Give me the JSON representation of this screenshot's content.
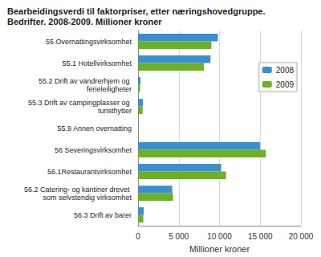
{
  "chart_data": {
    "type": "bar",
    "title": "Bearbeidingsverdi til faktorpriser, etter næringshovedgruppe. Bedrifter. 2008-2009. Millioner kroner",
    "orientation": "horizontal",
    "x_label": "Millioner kroner",
    "categories": [
      "55 Overnattingsvirksomhet",
      "55.1 Hotellvirksomhet",
      "55.2 Drift av vandrerhjem og ferieleiligheter",
      "55.3 Drift av campingplasser og turisthytter",
      "55.9 Annen overnatting",
      "56 Severingsvirksomhet",
      "56.1Restaurantvirksomhet",
      "56.2 Catering- og kantiner drevet som selvstendig virksomhet",
      "56.3 Drift av barer"
    ],
    "series": [
      {
        "name": "2008",
        "color": "#3a8fd0",
        "values": [
          9800,
          8900,
          300,
          600,
          50,
          15000,
          10200,
          4200,
          700
        ]
      },
      {
        "name": "2009",
        "color": "#6cb023",
        "values": [
          9000,
          8100,
          250,
          550,
          50,
          15700,
          10800,
          4300,
          650
        ]
      }
    ],
    "xlim": [
      0,
      20000
    ],
    "xticks": [
      0,
      {
        "value": 5000,
        "label": "5 000"
      },
      {
        "value": 10000,
        "label": "10 000"
      },
      {
        "value": 15000,
        "label": "15 000"
      },
      {
        "value": 20000,
        "label": "20 000"
      }
    ],
    "grid": true,
    "legend": "upper right"
  }
}
